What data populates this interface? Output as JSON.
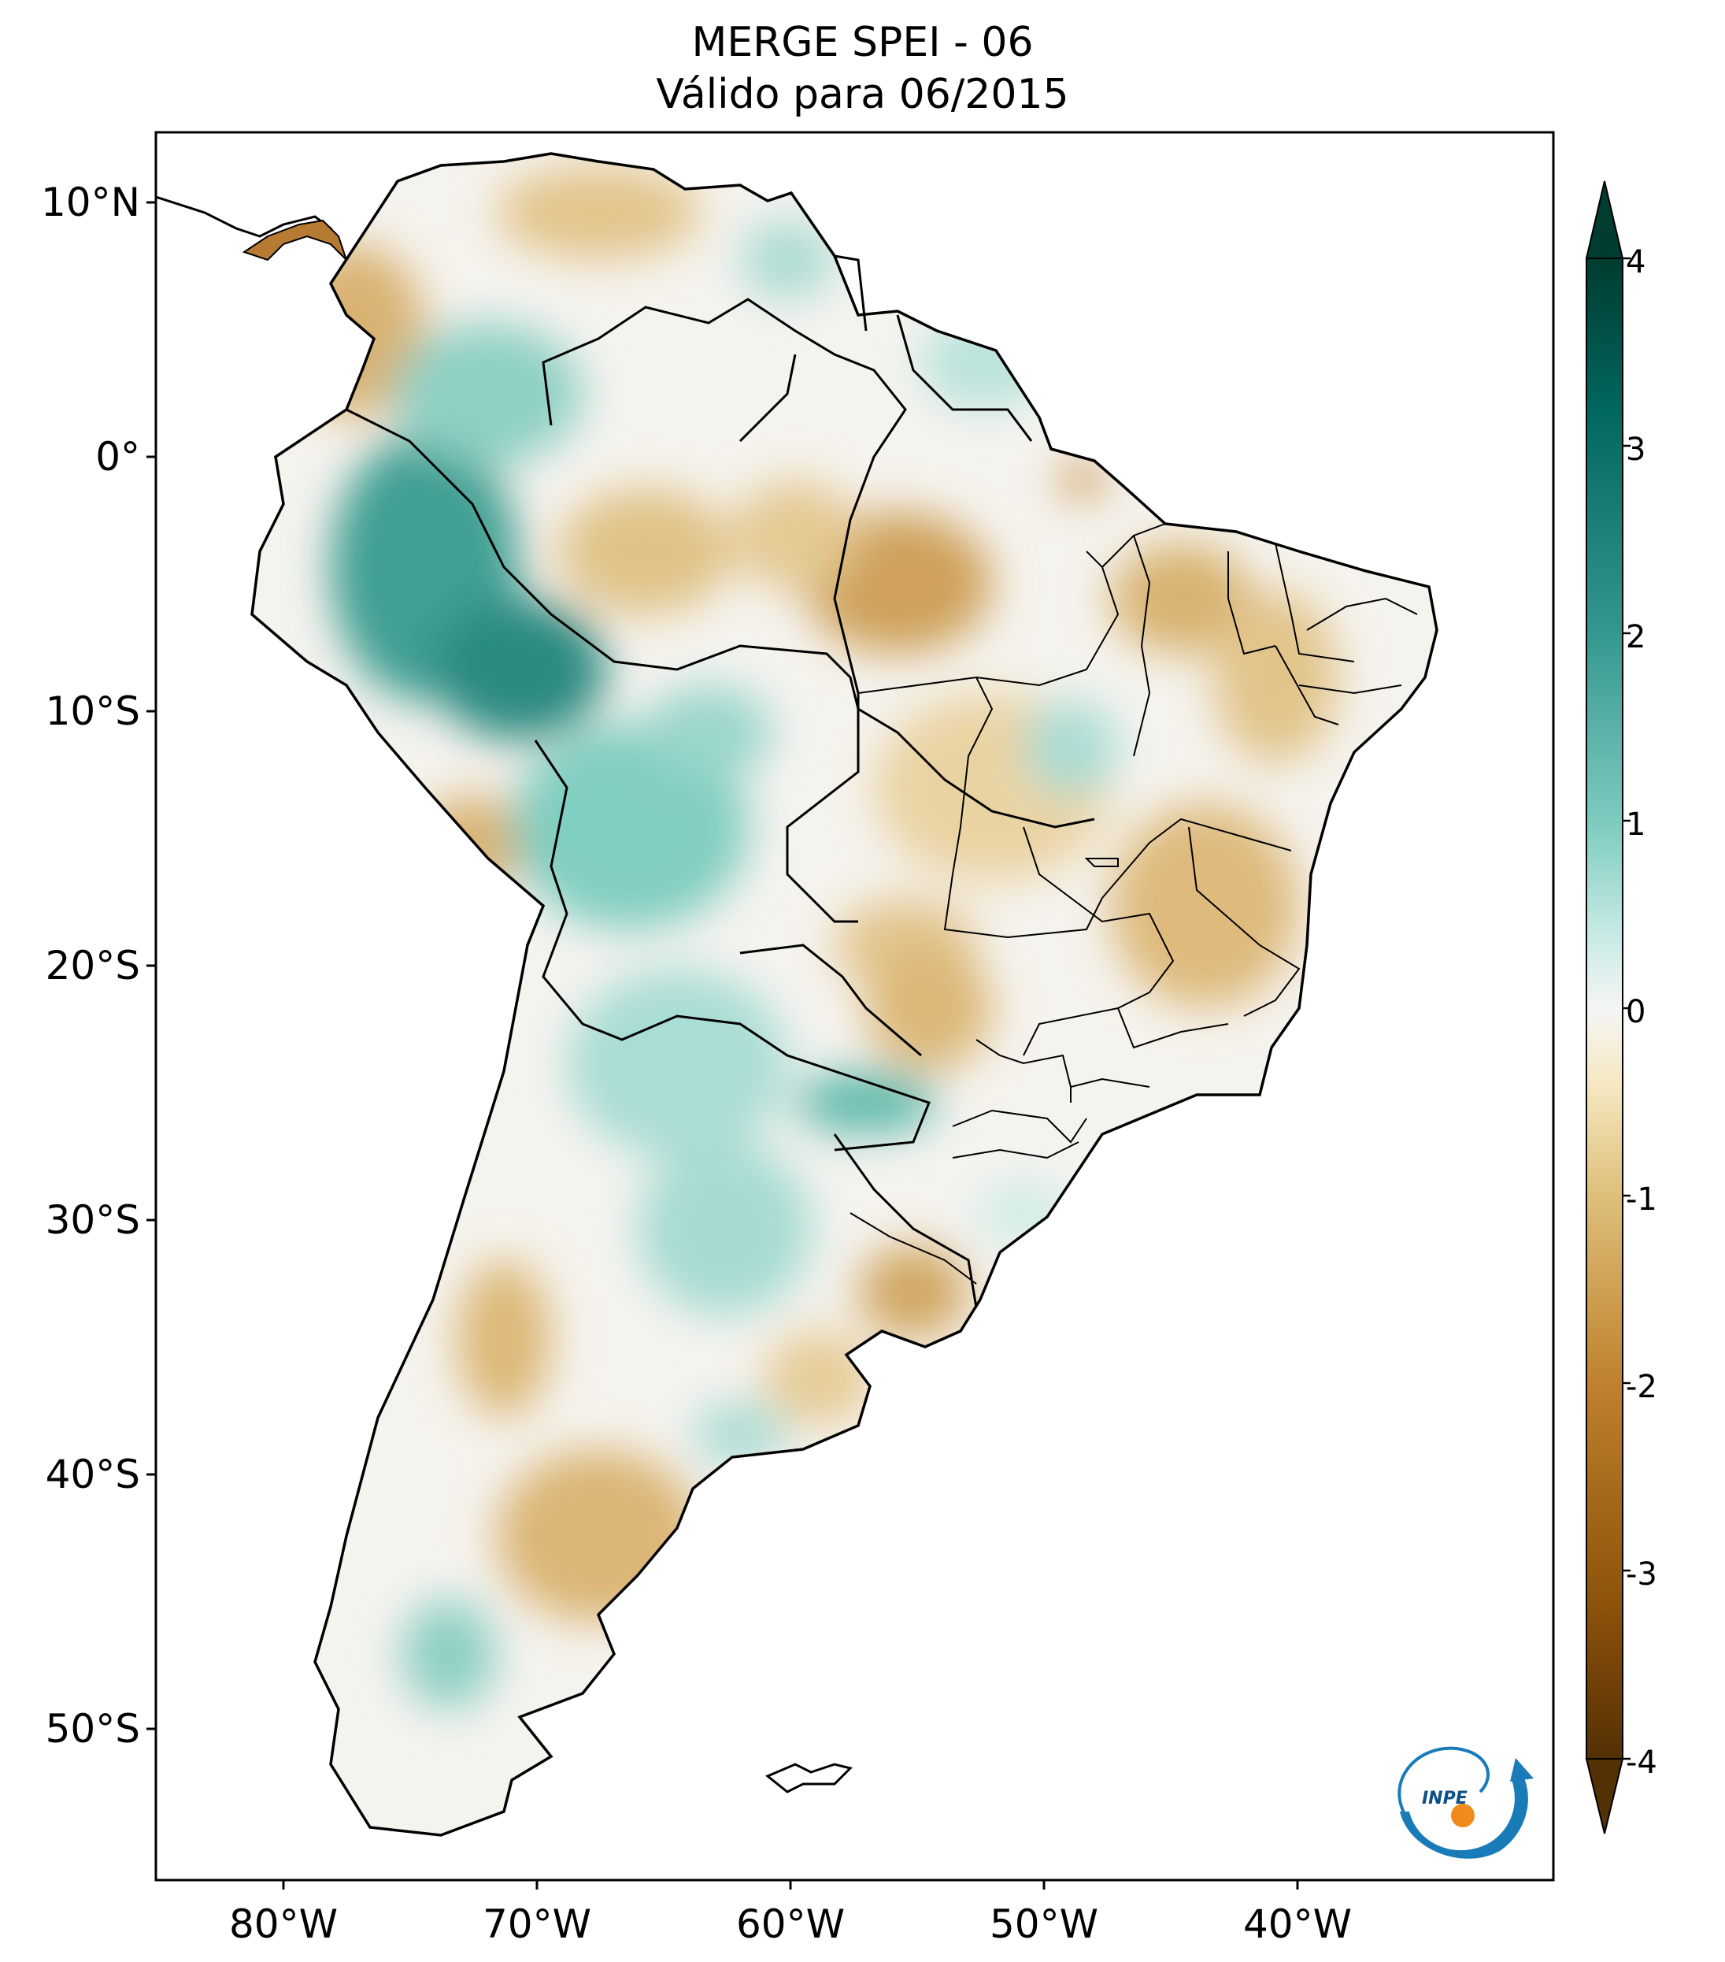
{
  "title": {
    "line1": "MERGE   SPEI - 06",
    "line2": "Válido para 06/2015"
  },
  "axes": {
    "lat_ticks": [
      "10°N",
      "0°",
      "10°S",
      "20°S",
      "30°S",
      "40°S",
      "50°S"
    ],
    "lon_ticks": [
      "80°W",
      "70°W",
      "60°W",
      "50°W",
      "40°W"
    ],
    "lat_range": [
      -56,
      12.5
    ],
    "lon_range": [
      -85,
      -30
    ]
  },
  "colorbar": {
    "ticks": [
      "4",
      "3",
      "2",
      "1",
      "0",
      "-1",
      "-2",
      "-3",
      "-4"
    ],
    "range": [
      -4,
      4
    ],
    "extend": "both",
    "colormap": "BrBG",
    "colors": {
      "dry_extreme": "#543005",
      "dry_strong": "#8c510a",
      "dry": "#bf812d",
      "dry_mild": "#dfc27d",
      "dry_light": "#f6e8c3",
      "neutral": "#f5f5f5",
      "wet_light": "#c7eae5",
      "wet_mild": "#80cdc1",
      "wet": "#35978f",
      "wet_strong": "#01665e",
      "wet_extreme": "#003c30"
    }
  },
  "logo": {
    "name": "inpe-logo",
    "text": "INPE"
  }
}
